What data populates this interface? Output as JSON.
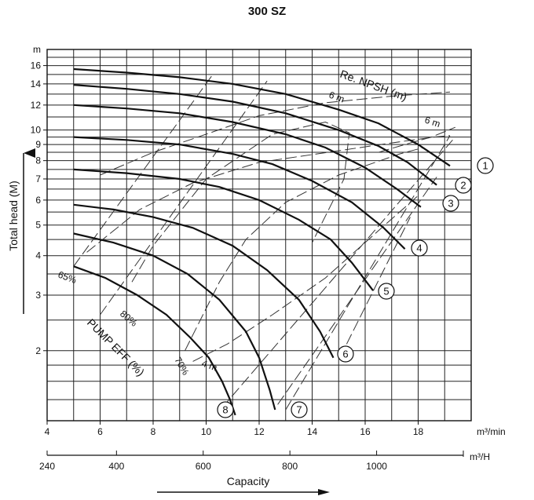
{
  "title": "300 SZ",
  "chart_data": {
    "type": "line",
    "title": "300 SZ",
    "ylabel": "Total head (M)",
    "yunit": "m",
    "xunit": "m³/min",
    "x2unit": "m³/H",
    "x2label": "Capacity",
    "yscale": "log",
    "ylim": [
      1.2,
      18
    ],
    "xlim": [
      4,
      20
    ],
    "x2lim": [
      240,
      1200
    ],
    "yticks": [
      2,
      3,
      4,
      5,
      6,
      7,
      8,
      9,
      10,
      12,
      14,
      16
    ],
    "xticks": [
      4,
      6,
      8,
      10,
      12,
      14,
      16,
      18
    ],
    "x2ticks": [
      240,
      400,
      600,
      800,
      1000
    ],
    "grid": true,
    "series": [
      {
        "name": "1",
        "x": [
          5,
          7,
          9,
          11,
          13,
          15,
          16.5,
          18,
          19.2
        ],
        "y": [
          15.6,
          15.2,
          14.7,
          14.0,
          13.0,
          11.6,
          10.5,
          9.0,
          7.7
        ]
      },
      {
        "name": "2",
        "x": [
          5,
          7,
          9,
          11,
          13,
          15,
          16.5,
          17.6,
          18.7
        ],
        "y": [
          13.9,
          13.5,
          13.0,
          12.3,
          11.3,
          10.0,
          8.9,
          7.9,
          6.7
        ]
      },
      {
        "name": "3",
        "x": [
          5,
          7,
          9,
          11,
          13,
          14.5,
          16,
          17.2,
          18.1
        ],
        "y": [
          12.0,
          11.7,
          11.3,
          10.6,
          9.7,
          8.8,
          7.6,
          6.5,
          5.7
        ]
      },
      {
        "name": "4",
        "x": [
          5,
          7,
          9,
          11,
          12.5,
          14,
          15.5,
          16.7,
          17.5
        ],
        "y": [
          9.5,
          9.3,
          9.0,
          8.4,
          7.8,
          6.9,
          5.9,
          4.9,
          4.2
        ]
      },
      {
        "name": "5",
        "x": [
          5,
          7,
          9,
          10.5,
          12,
          13.5,
          14.7,
          15.5,
          16.3
        ],
        "y": [
          7.5,
          7.3,
          7.0,
          6.6,
          6.0,
          5.2,
          4.5,
          3.8,
          3.1
        ]
      },
      {
        "name": "6",
        "x": [
          5,
          6.5,
          8,
          9.5,
          11,
          12.3,
          13.5,
          14.3,
          14.8
        ],
        "y": [
          5.8,
          5.6,
          5.3,
          4.9,
          4.3,
          3.6,
          2.9,
          2.3,
          1.9
        ]
      },
      {
        "name": "7",
        "x": [
          5,
          6.5,
          8,
          9.3,
          10.5,
          11.5,
          12.0,
          12.4,
          12.6
        ],
        "y": [
          4.7,
          4.4,
          4.0,
          3.5,
          2.9,
          2.3,
          1.9,
          1.5,
          1.3
        ]
      },
      {
        "name": "8",
        "x": [
          5,
          6.2,
          7.4,
          8.5,
          9.4,
          10.1,
          10.6,
          10.9,
          11.1
        ],
        "y": [
          3.7,
          3.4,
          3.0,
          2.6,
          2.2,
          1.9,
          1.6,
          1.4,
          1.25
        ]
      }
    ],
    "efficiency_curves": [
      {
        "label": "65%",
        "x": [
          5.5,
          7.5,
          9.5,
          12,
          15,
          17,
          18.6,
          19.2
        ],
        "y": [
          4.1,
          5.6,
          6.8,
          7.9,
          8.6,
          9.1,
          9.5,
          9.6
        ]
      },
      {
        "label": "70%",
        "x": [
          9.2,
          10.5,
          11.5,
          13,
          15,
          17.3,
          18.2
        ],
        "y": [
          2.0,
          3.3,
          4.5,
          5.9,
          7.2,
          8.4,
          8.8
        ]
      },
      {
        "label": "80%",
        "x": [
          7.2,
          8,
          10,
          12.5,
          14.5,
          15.4,
          15.2,
          14
        ],
        "y": [
          3.3,
          4.3,
          7.0,
          9.7,
          10.6,
          9.8,
          7.0,
          4.4
        ]
      }
    ],
    "npsh_curves": [
      {
        "label": "4 m",
        "x": [
          9.5,
          10.8,
          12.5,
          14.5,
          16.5,
          18.0
        ],
        "y": [
          1.85,
          2.1,
          2.6,
          3.4,
          4.8,
          6.2
        ]
      },
      {
        "label": "6 m",
        "x": [
          6,
          8,
          10,
          12,
          14.5,
          17,
          19.2
        ],
        "y": [
          7.2,
          8.5,
          9.7,
          11.1,
          12.2,
          12.8,
          13.2
        ]
      },
      {
        "label": "6 m",
        "x": [
          16.5,
          17.5,
          18.5,
          19.4
        ],
        "y": [
          8.5,
          9.0,
          9.5,
          10.2
        ]
      }
    ],
    "dashed_lines": [
      {
        "x": [
          5,
          10.2
        ],
        "y": [
          3.7,
          14.8
        ]
      },
      {
        "x": [
          6,
          12.3
        ],
        "y": [
          2.6,
          14.3
        ]
      },
      {
        "x": [
          10.6,
          19.3
        ],
        "y": [
          1.32,
          9.3
        ]
      },
      {
        "x": [
          12.7,
          18.7
        ],
        "y": [
          1.35,
          7.1
        ]
      },
      {
        "x": [
          15.3,
          17.7
        ],
        "y": [
          2.1,
          5.3
        ]
      },
      {
        "x": [
          13.0,
          19.2
        ],
        "y": [
          1.3,
          9.6
        ]
      }
    ],
    "annotations": [
      "Re. NPSH (m)",
      "6 m",
      "6 m",
      "4 m",
      "65%",
      "70%",
      "80%",
      "PUMP EFF (%)"
    ]
  },
  "x2_label_unit": "m³/H"
}
